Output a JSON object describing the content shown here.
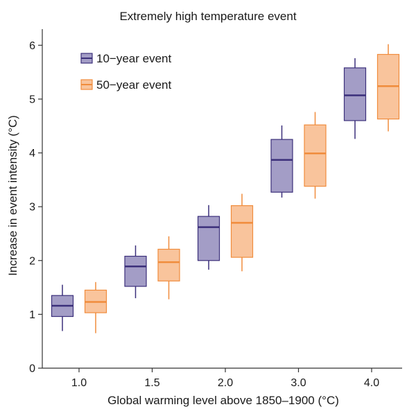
{
  "chart_data": {
    "type": "box",
    "title": "Extremely high temperature event",
    "xlabel": "Global warming level above 1850–1900 (°C)",
    "ylabel": "Increase in event intensity (°C)",
    "ylim": [
      0,
      6.3
    ],
    "yticks": [
      0,
      1,
      2,
      3,
      4,
      5,
      6
    ],
    "grid": false,
    "legend_position": "top-left",
    "categories": [
      "1.0",
      "1.5",
      "2.0",
      "3.0",
      "4.0"
    ],
    "series": [
      {
        "name": "10−year event",
        "fill": "#a39dc6",
        "stroke": "#3b2f7a",
        "boxes": [
          {
            "min": 0.69,
            "q1": 0.96,
            "median": 1.16,
            "q3": 1.35,
            "max": 1.55
          },
          {
            "min": 1.3,
            "q1": 1.52,
            "median": 1.89,
            "q3": 2.08,
            "max": 2.28
          },
          {
            "min": 1.83,
            "q1": 2.0,
            "median": 2.62,
            "q3": 2.82,
            "max": 3.03
          },
          {
            "min": 3.17,
            "q1": 3.27,
            "median": 3.87,
            "q3": 4.25,
            "max": 4.51
          },
          {
            "min": 4.26,
            "q1": 4.6,
            "median": 5.07,
            "q3": 5.58,
            "max": 5.76
          }
        ]
      },
      {
        "name": "50−year event",
        "fill": "#f9c49c",
        "stroke": "#f08c3c",
        "boxes": [
          {
            "min": 0.65,
            "q1": 1.03,
            "median": 1.23,
            "q3": 1.45,
            "max": 1.6
          },
          {
            "min": 1.28,
            "q1": 1.62,
            "median": 1.97,
            "q3": 2.21,
            "max": 2.45
          },
          {
            "min": 1.8,
            "q1": 2.06,
            "median": 2.7,
            "q3": 3.02,
            "max": 3.24
          },
          {
            "min": 3.15,
            "q1": 3.38,
            "median": 3.99,
            "q3": 4.52,
            "max": 4.76
          },
          {
            "min": 4.4,
            "q1": 4.63,
            "median": 5.24,
            "q3": 5.83,
            "max": 6.02
          }
        ]
      }
    ]
  }
}
